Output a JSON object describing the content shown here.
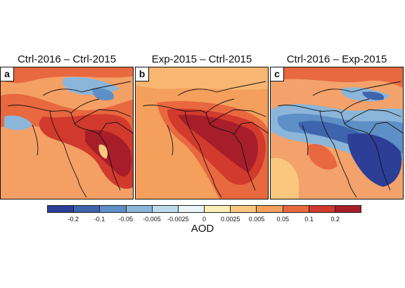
{
  "panels": [
    {
      "letter": "a",
      "title": "Ctrl-2016 – Ctrl-2015"
    },
    {
      "letter": "b",
      "title": "Exp-2015 – Ctrl-2015"
    },
    {
      "letter": "c",
      "title": "Ctrl-2016 – Exp-2015"
    }
  ],
  "colorbar": {
    "label": "AOD",
    "colors": [
      "#2c3e96",
      "#3e64ae",
      "#5e8fc6",
      "#8bb6da",
      "#bcdcec",
      "#e9f4f7",
      "#fbeeb6",
      "#f9c77e",
      "#f49f5c",
      "#e8683f",
      "#d13a2c",
      "#a81d2a"
    ],
    "ticks": [
      "-0.2",
      "-0.1",
      "-0.05",
      "-0.005",
      "-0.0025",
      "0",
      "0.0025",
      "0.005",
      "0.05",
      "0.1",
      "0.2"
    ]
  },
  "fill_colors": {
    "a": "#f4a065",
    "b": "#f09a5c",
    "c": "#f2a26a"
  }
}
